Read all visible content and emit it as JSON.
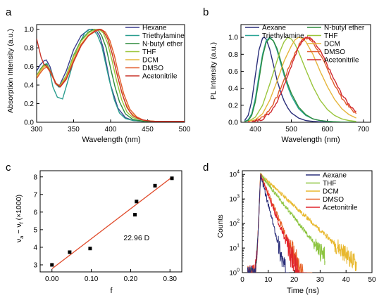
{
  "chart_data": [
    {
      "id": "a",
      "panel_label": "a",
      "type": "line",
      "xlabel": "Wavelength (nm)",
      "ylabel": "Absorption Intensity (a.u.)",
      "xlim": [
        300,
        500
      ],
      "ylim": [
        0.0,
        1.05
      ],
      "xticks": [
        300,
        350,
        400,
        450,
        500
      ],
      "yticks": [
        0.0,
        0.2,
        0.4,
        0.6,
        0.8,
        1.0
      ],
      "xtick_labels": [
        "300",
        "350",
        "400",
        "450",
        "500"
      ],
      "ytick_labels": [
        "0.0",
        "0.2",
        "0.4",
        "0.6",
        "0.8",
        "1.0"
      ],
      "legend_position": "top-right",
      "series": [
        {
          "name": "Hexane",
          "color": "#3b3f8f",
          "x": [
            300,
            305,
            310,
            313,
            318,
            325,
            330,
            340,
            350,
            360,
            370,
            375,
            380,
            385,
            390,
            395,
            400,
            410,
            420,
            430,
            445,
            460,
            480,
            500
          ],
          "y": [
            0.55,
            0.62,
            0.66,
            0.67,
            0.6,
            0.42,
            0.38,
            0.55,
            0.78,
            0.93,
            0.995,
            1.0,
            0.99,
            0.93,
            0.8,
            0.6,
            0.4,
            0.15,
            0.05,
            0.02,
            0.01,
            0.01,
            0.01,
            0.01
          ]
        },
        {
          "name": "Triethylamine",
          "color": "#2a9d8f",
          "x": [
            300,
            305,
            310,
            314,
            318,
            322,
            328,
            335,
            345,
            355,
            365,
            372,
            377,
            382,
            388,
            393,
            398,
            405,
            412,
            420,
            430,
            445,
            460,
            480,
            500
          ],
          "y": [
            0.5,
            0.56,
            0.62,
            0.63,
            0.54,
            0.38,
            0.27,
            0.25,
            0.52,
            0.8,
            0.96,
            1.0,
            0.99,
            0.94,
            0.82,
            0.64,
            0.46,
            0.24,
            0.1,
            0.04,
            0.02,
            0.01,
            0.01,
            0.01,
            0.01
          ]
        },
        {
          "name": "N-butyl ether",
          "color": "#2e8b3e",
          "x": [
            300,
            305,
            310,
            314,
            319,
            326,
            331,
            340,
            350,
            360,
            370,
            378,
            383,
            388,
            394,
            400,
            406,
            412,
            420,
            430,
            445,
            460,
            480,
            500
          ],
          "y": [
            0.5,
            0.57,
            0.62,
            0.62,
            0.55,
            0.41,
            0.38,
            0.5,
            0.72,
            0.88,
            0.97,
            1.0,
            0.99,
            0.93,
            0.8,
            0.58,
            0.38,
            0.22,
            0.09,
            0.03,
            0.01,
            0.01,
            0.01,
            0.01
          ]
        },
        {
          "name": "THF",
          "color": "#9ac53b",
          "x": [
            300,
            305,
            310,
            314,
            319,
            326,
            331,
            340,
            350,
            360,
            370,
            378,
            384,
            390,
            396,
            402,
            408,
            415,
            422,
            430,
            445,
            460,
            480,
            500
          ],
          "y": [
            0.5,
            0.56,
            0.61,
            0.61,
            0.55,
            0.42,
            0.39,
            0.5,
            0.71,
            0.87,
            0.96,
            0.995,
            1.0,
            0.96,
            0.85,
            0.66,
            0.45,
            0.24,
            0.11,
            0.05,
            0.02,
            0.01,
            0.01,
            0.01
          ]
        },
        {
          "name": "DCM",
          "color": "#e5b53a",
          "x": [
            300,
            305,
            310,
            314,
            319,
            326,
            332,
            340,
            350,
            360,
            370,
            380,
            386,
            392,
            398,
            404,
            410,
            418,
            426,
            435,
            445,
            460,
            480,
            500
          ],
          "y": [
            0.49,
            0.55,
            0.6,
            0.6,
            0.54,
            0.42,
            0.39,
            0.48,
            0.68,
            0.84,
            0.94,
            0.99,
            1.0,
            0.96,
            0.86,
            0.68,
            0.47,
            0.25,
            0.11,
            0.05,
            0.02,
            0.01,
            0.01,
            0.01
          ]
        },
        {
          "name": "DMSO",
          "color": "#e25b2a",
          "x": [
            300,
            305,
            310,
            314,
            319,
            326,
            332,
            340,
            350,
            360,
            370,
            380,
            387,
            393,
            399,
            405,
            411,
            418,
            426,
            435,
            445,
            460,
            480,
            500
          ],
          "y": [
            0.47,
            0.53,
            0.58,
            0.59,
            0.53,
            0.41,
            0.39,
            0.47,
            0.66,
            0.83,
            0.93,
            0.98,
            1.0,
            0.97,
            0.88,
            0.72,
            0.51,
            0.3,
            0.14,
            0.06,
            0.02,
            0.01,
            0.01,
            0.01
          ]
        },
        {
          "name": "Acetonitrile",
          "color": "#c9342a",
          "x": [
            300,
            303,
            306,
            310,
            314,
            319,
            326,
            332,
            340,
            350,
            360,
            370,
            380,
            385,
            390,
            396,
            402,
            408,
            415,
            422,
            430,
            440,
            455,
            470,
            500
          ],
          "y": [
            0.9,
            0.8,
            0.7,
            0.62,
            0.6,
            0.54,
            0.42,
            0.38,
            0.46,
            0.65,
            0.82,
            0.93,
            0.99,
            1.0,
            0.98,
            0.9,
            0.74,
            0.54,
            0.32,
            0.16,
            0.07,
            0.03,
            0.01,
            0.01,
            0.01
          ]
        }
      ]
    },
    {
      "id": "b",
      "panel_label": "b",
      "type": "line",
      "xlabel": "Wavelength (nm)",
      "ylabel": "PL Intensity (a.u.)",
      "xlim": [
        360,
        720
      ],
      "ylim": [
        0.0,
        1.15
      ],
      "xticks": [
        400,
        500,
        600,
        700
      ],
      "yticks": [
        0.0,
        0.2,
        0.4,
        0.6,
        0.8,
        1.0
      ],
      "xtick_labels": [
        "400",
        "500",
        "600",
        "700"
      ],
      "ytick_labels": [
        "0.0",
        "0.2",
        "0.4",
        "0.6",
        "0.8",
        "1.0"
      ],
      "legend_position": "top",
      "series": [
        {
          "name": "Aexane",
          "color": "#2a2e7a",
          "x": [
            370,
            380,
            390,
            400,
            410,
            420,
            425,
            430,
            440,
            450,
            460,
            470,
            480,
            490,
            500,
            520,
            540,
            560,
            600,
            650,
            680
          ],
          "y": [
            0.02,
            0.08,
            0.25,
            0.55,
            0.85,
            0.99,
            1.0,
            0.98,
            0.86,
            0.68,
            0.5,
            0.36,
            0.25,
            0.17,
            0.11,
            0.05,
            0.02,
            0.01,
            0.0,
            0.0,
            0.0
          ]
        },
        {
          "name": "Triethylamine",
          "color": "#2aa596",
          "x": [
            370,
            380,
            390,
            400,
            410,
            420,
            430,
            440,
            450,
            460,
            470,
            480,
            490,
            500,
            520,
            540,
            560,
            580,
            600,
            650,
            680
          ],
          "y": [
            0.01,
            0.03,
            0.1,
            0.28,
            0.55,
            0.8,
            0.96,
            1.0,
            0.96,
            0.85,
            0.7,
            0.55,
            0.42,
            0.31,
            0.16,
            0.08,
            0.04,
            0.02,
            0.01,
            0.0,
            0.0
          ]
        },
        {
          "name": "N-butyl ether",
          "color": "#2e8b3e",
          "x": [
            370,
            380,
            390,
            400,
            410,
            420,
            430,
            440,
            450,
            460,
            470,
            480,
            490,
            500,
            520,
            540,
            560,
            580,
            600,
            650,
            680
          ],
          "y": [
            0.01,
            0.02,
            0.08,
            0.24,
            0.5,
            0.77,
            0.94,
            0.99,
            0.96,
            0.87,
            0.73,
            0.58,
            0.45,
            0.34,
            0.18,
            0.09,
            0.04,
            0.02,
            0.01,
            0.0,
            0.0
          ]
        },
        {
          "name": "THF",
          "color": "#9ac53b",
          "x": [
            380,
            400,
            420,
            440,
            460,
            470,
            480,
            490,
            500,
            510,
            520,
            540,
            560,
            580,
            600,
            620,
            640,
            660,
            680
          ],
          "y": [
            0.01,
            0.06,
            0.2,
            0.45,
            0.72,
            0.85,
            0.95,
            1.0,
            0.98,
            0.92,
            0.83,
            0.62,
            0.42,
            0.26,
            0.15,
            0.08,
            0.04,
            0.02,
            0.01
          ]
        },
        {
          "name": "DCM",
          "color": "#e5b53a",
          "x": [
            380,
            400,
            420,
            440,
            460,
            480,
            500,
            510,
            520,
            530,
            540,
            560,
            580,
            600,
            620,
            640,
            660,
            680
          ],
          "y": [
            0.01,
            0.03,
            0.1,
            0.26,
            0.48,
            0.72,
            0.9,
            0.97,
            1.0,
            0.99,
            0.95,
            0.8,
            0.6,
            0.42,
            0.27,
            0.16,
            0.09,
            0.05
          ]
        },
        {
          "name": "DMSO",
          "color": "#e25b2a",
          "x": [
            380,
            400,
            420,
            440,
            460,
            480,
            500,
            520,
            530,
            540,
            550,
            560,
            580,
            600,
            620,
            640,
            660,
            680
          ],
          "y": [
            0.0,
            0.02,
            0.06,
            0.15,
            0.3,
            0.5,
            0.72,
            0.9,
            0.97,
            1.0,
            0.98,
            0.94,
            0.8,
            0.62,
            0.44,
            0.29,
            0.18,
            0.1
          ]
        },
        {
          "name": "Acetonitrile",
          "color": "#d1292f",
          "x": [
            380,
            400,
            420,
            440,
            460,
            480,
            500,
            520,
            530,
            540,
            550,
            560,
            580,
            600,
            620,
            640,
            660,
            680
          ],
          "y": [
            0.0,
            0.01,
            0.04,
            0.11,
            0.24,
            0.44,
            0.67,
            0.88,
            0.96,
            1.0,
            0.99,
            0.96,
            0.84,
            0.67,
            0.49,
            0.33,
            0.21,
            0.13
          ]
        }
      ]
    },
    {
      "id": "c",
      "panel_label": "c",
      "type": "scatter",
      "xlabel": "f",
      "ylabel": "ν",
      "ylabel_parts": [
        "ν",
        "a",
        " − ν",
        "f",
        " (×1000)"
      ],
      "xlim": [
        -0.03,
        0.33
      ],
      "ylim": [
        2.6,
        8.35
      ],
      "xticks": [
        0.0,
        0.1,
        0.2,
        0.3
      ],
      "yticks": [
        3,
        4,
        5,
        6,
        7,
        8
      ],
      "xtick_labels": [
        "0.00",
        "0.10",
        "0.20",
        "0.30"
      ],
      "ytick_labels": [
        "3",
        "4",
        "5",
        "6",
        "7",
        "8"
      ],
      "annotation": "22.96 D",
      "annotation_at": [
        0.215,
        4.4
      ],
      "points": {
        "x": [
          0.0,
          0.045,
          0.097,
          0.211,
          0.215,
          0.262,
          0.305
        ],
        "y": [
          3.0,
          3.72,
          3.93,
          5.85,
          6.6,
          7.5,
          7.92
        ]
      },
      "fit_line": {
        "color": "#e04a2a",
        "x": [
          0.0,
          0.305
        ],
        "y": [
          2.78,
          7.98
        ]
      }
    },
    {
      "id": "d",
      "panel_label": "d",
      "type": "line",
      "xlabel": "Time (ns)",
      "ylabel": "Counts",
      "xlim": [
        0,
        50
      ],
      "ylim_log10": [
        0,
        4.15
      ],
      "xticks": [
        0,
        10,
        20,
        30,
        40,
        50
      ],
      "xtick_labels": [
        "0",
        "10",
        "20",
        "30",
        "40",
        "50"
      ],
      "yticks_log10": [
        0,
        1,
        2,
        3,
        4
      ],
      "ytick_bases": [
        "10",
        "10",
        "10",
        "10",
        "10"
      ],
      "ytick_exps": [
        "0",
        "1",
        "2",
        "3",
        "4"
      ],
      "legend_position": "top-right",
      "series": [
        {
          "name": "Aexane",
          "color": "#2a2e7a",
          "peak_t": 7.0,
          "tau": 1.05,
          "cutoff": 18,
          "noise": 0.15
        },
        {
          "name": "THF",
          "color": "#8cc43f",
          "peak_t": 7.0,
          "tau": 3.2,
          "cutoff": 32,
          "noise": 0.12
        },
        {
          "name": "DCM",
          "color": "#e8b82e",
          "peak_t": 7.0,
          "tau": 4.4,
          "cutoff": 44,
          "noise": 0.11
        },
        {
          "name": "DMSO",
          "color": "#e8652b",
          "peak_t": 7.0,
          "tau": 1.7,
          "cutoff": 27,
          "noise": 0.16
        },
        {
          "name": "Acetonitrile",
          "color": "#e0242c",
          "peak_t": 7.0,
          "tau": 1.55,
          "cutoff": 25,
          "noise": 0.17
        }
      ]
    }
  ]
}
